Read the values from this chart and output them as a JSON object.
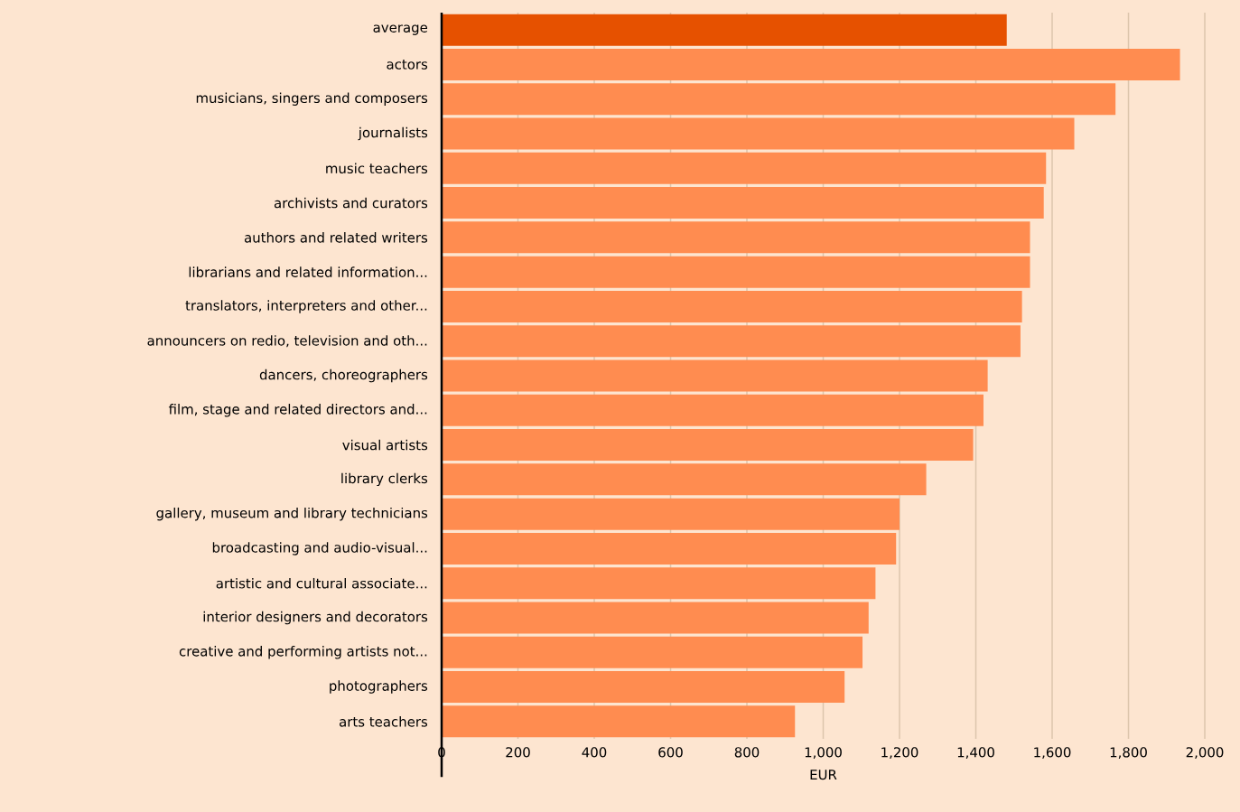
{
  "chart_data": {
    "type": "bar",
    "orientation": "horizontal",
    "categories": [
      "average",
      "actors",
      "musicians, singers and composers",
      "journalists",
      "music teachers",
      "archivists and curators",
      "authors and related writers",
      "librarians and related information...",
      "translators, interpreters and other...",
      "announcers on redio, television and oth...",
      "dancers, choreographers",
      "film, stage and related directors and...",
      "visual artists",
      "library clerks",
      "gallery, museum and library technicians",
      "broadcasting and audio-visual...",
      "artistic and cultural associate...",
      "interior designers and decorators",
      "creative and performing artists not...",
      "photographers",
      "arts teachers"
    ],
    "values": [
      1481,
      1935,
      1766,
      1658,
      1584,
      1578,
      1542,
      1542,
      1521,
      1517,
      1431,
      1420,
      1393,
      1270,
      1200,
      1191,
      1137,
      1119,
      1103,
      1056,
      926
    ],
    "colors": [
      "#e65100",
      "#ff8c50",
      "#ff8c50",
      "#ff8c50",
      "#ff8c50",
      "#ff8c50",
      "#ff8c50",
      "#ff8c50",
      "#ff8c50",
      "#ff8c50",
      "#ff8c50",
      "#ff8c50",
      "#ff8c50",
      "#ff8c50",
      "#ff8c50",
      "#ff8c50",
      "#ff8c50",
      "#ff8c50",
      "#ff8c50",
      "#ff8c50",
      "#ff8c50"
    ],
    "xlabel": "EUR",
    "xlim": [
      0,
      2000
    ],
    "xticks": [
      0,
      200,
      400,
      600,
      800,
      {
        "value": 1000,
        "label": "1,000"
      },
      {
        "value": 1200,
        "label": "1,200"
      },
      {
        "value": 1400,
        "label": "1,400"
      },
      {
        "value": 1600,
        "label": "1,600"
      },
      {
        "value": 1800,
        "label": "1,800"
      },
      {
        "value": 2000,
        "label": "2,000"
      }
    ],
    "grid": "x"
  }
}
